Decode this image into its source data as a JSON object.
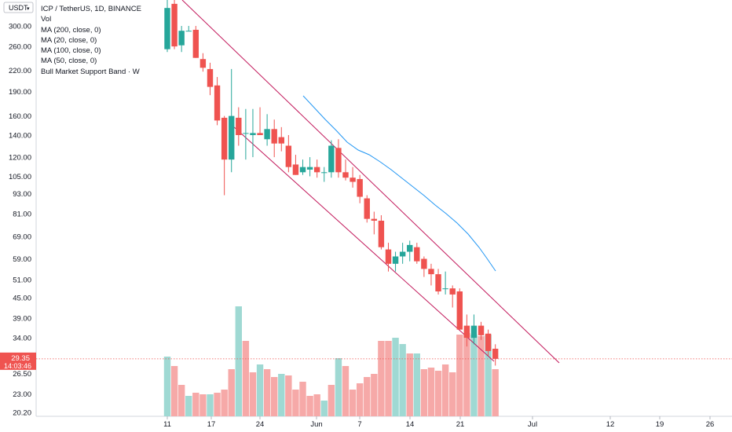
{
  "chart_data": {
    "type": "candlestick",
    "title": "ICP / TetherUS, 1D, BINANCE",
    "currency": "USDT",
    "legend": [
      "Vol",
      "MA (200, close, 0)",
      "MA (20, close, 0)",
      "MA (100, close, 0)",
      "MA (50, close, 0)",
      "Bull Market Support Band · W"
    ],
    "y_ticks": [
      "300.00",
      "260.00",
      "220.00",
      "190.00",
      "160.00",
      "140.00",
      "120.00",
      "105.00",
      "93.00",
      "81.00",
      "69.00",
      "59.00",
      "51.00",
      "45.00",
      "39.00",
      "34.00",
      "29.35",
      "26.50",
      "23.00",
      "20.20"
    ],
    "x_ticks": [
      "11",
      "17",
      "24",
      "Jun",
      "7",
      "14",
      "21",
      "Jul",
      "12",
      "19",
      "26"
    ],
    "last_price": "29.35",
    "countdown": "14:03:46",
    "colors": {
      "up": "#26a69a",
      "down": "#ef5350",
      "ma": "#2196f3",
      "channel": "#c2185b",
      "price_line": "#ef5350",
      "vol_up": "#9fd9d3",
      "vol_down": "#f6a9a8"
    },
    "candles": [
      {
        "o": 255,
        "h": 360,
        "l": 250,
        "c": 340
      },
      {
        "o": 350,
        "h": 380,
        "l": 255,
        "c": 260
      },
      {
        "o": 262,
        "h": 300,
        "l": 250,
        "c": 290
      },
      {
        "o": 290,
        "h": 300,
        "l": 290,
        "c": 290
      },
      {
        "o": 292,
        "h": 300,
        "l": 240,
        "c": 240
      },
      {
        "o": 238,
        "h": 248,
        "l": 218,
        "c": 224
      },
      {
        "o": 222,
        "h": 232,
        "l": 185,
        "c": 196
      },
      {
        "o": 198,
        "h": 210,
        "l": 150,
        "c": 155
      },
      {
        "o": 158,
        "h": 160,
        "l": 92,
        "c": 118
      },
      {
        "o": 118,
        "h": 222,
        "l": 108,
        "c": 160
      },
      {
        "o": 158,
        "h": 170,
        "l": 130,
        "c": 140
      },
      {
        "o": 142,
        "h": 168,
        "l": 118,
        "c": 142
      },
      {
        "o": 140,
        "h": 168,
        "l": 120,
        "c": 142
      },
      {
        "o": 142,
        "h": 170,
        "l": 140,
        "c": 140
      },
      {
        "o": 136,
        "h": 162,
        "l": 130,
        "c": 146
      },
      {
        "o": 146,
        "h": 156,
        "l": 120,
        "c": 132
      },
      {
        "o": 138,
        "h": 148,
        "l": 125,
        "c": 132
      },
      {
        "o": 130,
        "h": 140,
        "l": 108,
        "c": 112
      },
      {
        "o": 114,
        "h": 122,
        "l": 106,
        "c": 106
      },
      {
        "o": 108,
        "h": 118,
        "l": 106,
        "c": 112
      },
      {
        "o": 110,
        "h": 120,
        "l": 105,
        "c": 112
      },
      {
        "o": 112,
        "h": 118,
        "l": 104,
        "c": 108
      },
      {
        "o": 108,
        "h": 112,
        "l": 101,
        "c": 108
      },
      {
        "o": 108,
        "h": 135,
        "l": 104,
        "c": 130
      },
      {
        "o": 128,
        "h": 136,
        "l": 104,
        "c": 108
      },
      {
        "o": 108,
        "h": 118,
        "l": 102,
        "c": 104
      },
      {
        "o": 104,
        "h": 112,
        "l": 97,
        "c": 101
      },
      {
        "o": 103,
        "h": 106,
        "l": 87,
        "c": 91
      },
      {
        "o": 90,
        "h": 92,
        "l": 76,
        "c": 78
      },
      {
        "o": 78,
        "h": 82,
        "l": 70,
        "c": 77
      },
      {
        "o": 77,
        "h": 80,
        "l": 63,
        "c": 64
      },
      {
        "o": 63,
        "h": 66,
        "l": 54,
        "c": 57
      },
      {
        "o": 57,
        "h": 62,
        "l": 54,
        "c": 60
      },
      {
        "o": 60,
        "h": 66,
        "l": 57,
        "c": 62
      },
      {
        "o": 62,
        "h": 67,
        "l": 58,
        "c": 65
      },
      {
        "o": 64,
        "h": 66,
        "l": 57,
        "c": 58
      },
      {
        "o": 59,
        "h": 60,
        "l": 52,
        "c": 55
      },
      {
        "o": 55,
        "h": 57,
        "l": 49,
        "c": 53
      },
      {
        "o": 53,
        "h": 55,
        "l": 46,
        "c": 47
      },
      {
        "o": 48,
        "h": 54,
        "l": 46,
        "c": 48
      },
      {
        "o": 48,
        "h": 49,
        "l": 42,
        "c": 46
      },
      {
        "o": 47,
        "h": 48,
        "l": 36,
        "c": 36
      },
      {
        "o": 37,
        "h": 40,
        "l": 32,
        "c": 34
      },
      {
        "o": 34,
        "h": 40,
        "l": 32.5,
        "c": 37
      },
      {
        "o": 37,
        "h": 38,
        "l": 33.5,
        "c": 34.6
      },
      {
        "o": 35,
        "h": 36,
        "l": 30,
        "c": 31
      },
      {
        "o": 31.5,
        "h": 32.5,
        "l": 28,
        "c": 29.35
      }
    ],
    "volume": [
      {
        "v": 0.76,
        "up": true
      },
      {
        "v": 0.64,
        "up": false
      },
      {
        "v": 0.4,
        "up": false
      },
      {
        "v": 0.26,
        "up": true
      },
      {
        "v": 0.3,
        "up": false
      },
      {
        "v": 0.28,
        "up": false
      },
      {
        "v": 0.28,
        "up": true
      },
      {
        "v": 0.3,
        "up": false
      },
      {
        "v": 0.34,
        "up": false
      },
      {
        "v": 0.6,
        "up": false
      },
      {
        "v": 1.4,
        "up": true
      },
      {
        "v": 0.96,
        "up": false
      },
      {
        "v": 0.56,
        "up": false
      },
      {
        "v": 0.66,
        "up": true
      },
      {
        "v": 0.6,
        "up": false
      },
      {
        "v": 0.5,
        "up": false
      },
      {
        "v": 0.54,
        "up": true
      },
      {
        "v": 0.52,
        "up": false
      },
      {
        "v": 0.34,
        "up": false
      },
      {
        "v": 0.44,
        "up": false
      },
      {
        "v": 0.26,
        "up": false
      },
      {
        "v": 0.28,
        "up": false
      },
      {
        "v": 0.2,
        "up": true
      },
      {
        "v": 0.4,
        "up": false
      },
      {
        "v": 0.74,
        "up": true
      },
      {
        "v": 0.64,
        "up": false
      },
      {
        "v": 0.34,
        "up": false
      },
      {
        "v": 0.42,
        "up": false
      },
      {
        "v": 0.5,
        "up": false
      },
      {
        "v": 0.54,
        "up": false
      },
      {
        "v": 0.96,
        "up": false
      },
      {
        "v": 0.96,
        "up": false
      },
      {
        "v": 1.0,
        "up": true
      },
      {
        "v": 0.92,
        "up": true
      },
      {
        "v": 0.8,
        "up": false
      },
      {
        "v": 0.8,
        "up": true
      },
      {
        "v": 0.6,
        "up": false
      },
      {
        "v": 0.62,
        "up": false
      },
      {
        "v": 0.58,
        "up": false
      },
      {
        "v": 0.66,
        "up": false
      },
      {
        "v": 0.56,
        "up": false
      },
      {
        "v": 1.04,
        "up": false
      },
      {
        "v": 1.06,
        "up": false
      },
      {
        "v": 1.04,
        "up": true
      },
      {
        "v": 1.02,
        "up": false
      },
      {
        "v": 1.04,
        "up": true
      },
      {
        "v": 0.6,
        "up": false
      }
    ]
  }
}
